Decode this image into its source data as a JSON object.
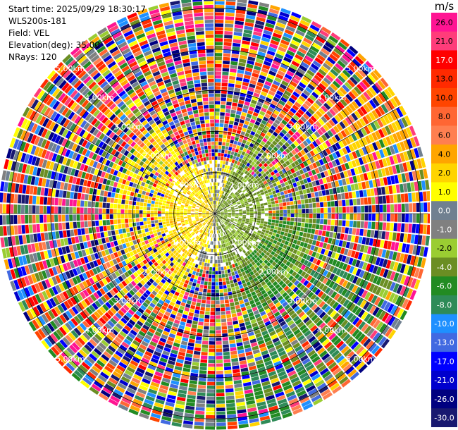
{
  "info": {
    "start_time": "Start time: 2025/09/29 18:30:17",
    "instrument": "WLS200s-181",
    "field": "Field: VEL",
    "elevation": "Elevation(deg): 35.00",
    "nrays": "NRays: 120"
  },
  "colorbar": {
    "unit": "m/s",
    "ticks": [
      "26.0",
      "21.0",
      "17.0",
      "13.0",
      "10.0",
      "8.0",
      "6.0",
      "4.0",
      "2.0",
      "1.0",
      "0.0",
      "-1.0",
      "-2.0",
      "-4.0",
      "-6.0",
      "-8.0",
      "-10.0",
      "-13.0",
      "-17.0",
      "-21.0",
      "-26.0",
      "-30.0"
    ],
    "colors": [
      "#ff1493",
      "#ff3c7a",
      "#ff0000",
      "#ff2a00",
      "#ff4500",
      "#ff6633",
      "#ff7f50",
      "#ffa500",
      "#ffd400",
      "#ffff00",
      "#708090",
      "#808080",
      "#9acd32",
      "#6b8e23",
      "#228b22",
      "#2e8b57",
      "#1e90ff",
      "#4169e1",
      "#0000ff",
      "#0000cd",
      "#000080",
      "#191970"
    ]
  },
  "chart_data": {
    "type": "ppi",
    "title": "",
    "field": "VEL",
    "units": "m/s",
    "elevation_deg": 35.0,
    "n_rays": 120,
    "range_rings_km": [
      1.0,
      2.0,
      3.0,
      4.0,
      5.0
    ],
    "range_labels": [
      "1.00km",
      "2.00km",
      "3.00km",
      "4.00km",
      "5.00km"
    ],
    "max_range_km": 5.2,
    "color_levels_ms": [
      -30,
      -26,
      -21,
      -17,
      -13,
      -10,
      -8,
      -6,
      -4,
      -2,
      -1,
      0,
      1,
      2,
      4,
      6,
      8,
      10,
      13,
      17,
      21,
      26
    ],
    "dominant_patterns": [
      {
        "sector": "west-near",
        "range_km": [
          0,
          1.2
        ],
        "velocity_ms": [
          1,
          4
        ]
      },
      {
        "sector": "east-near",
        "range_km": [
          0,
          1.6
        ],
        "velocity_ms": [
          -4,
          -1
        ]
      },
      {
        "sector": "southeast",
        "range_km": [
          1.5,
          4.5
        ],
        "velocity_ms": [
          -8,
          -2
        ]
      },
      {
        "sector": "northeast",
        "range_km": [
          3.5,
          5.0
        ],
        "velocity_ms": [
          2,
          6
        ]
      },
      {
        "sector": "far-range",
        "range_km": [
          2.5,
          5.2
        ],
        "velocity_ms": [
          -30,
          26
        ]
      }
    ]
  }
}
